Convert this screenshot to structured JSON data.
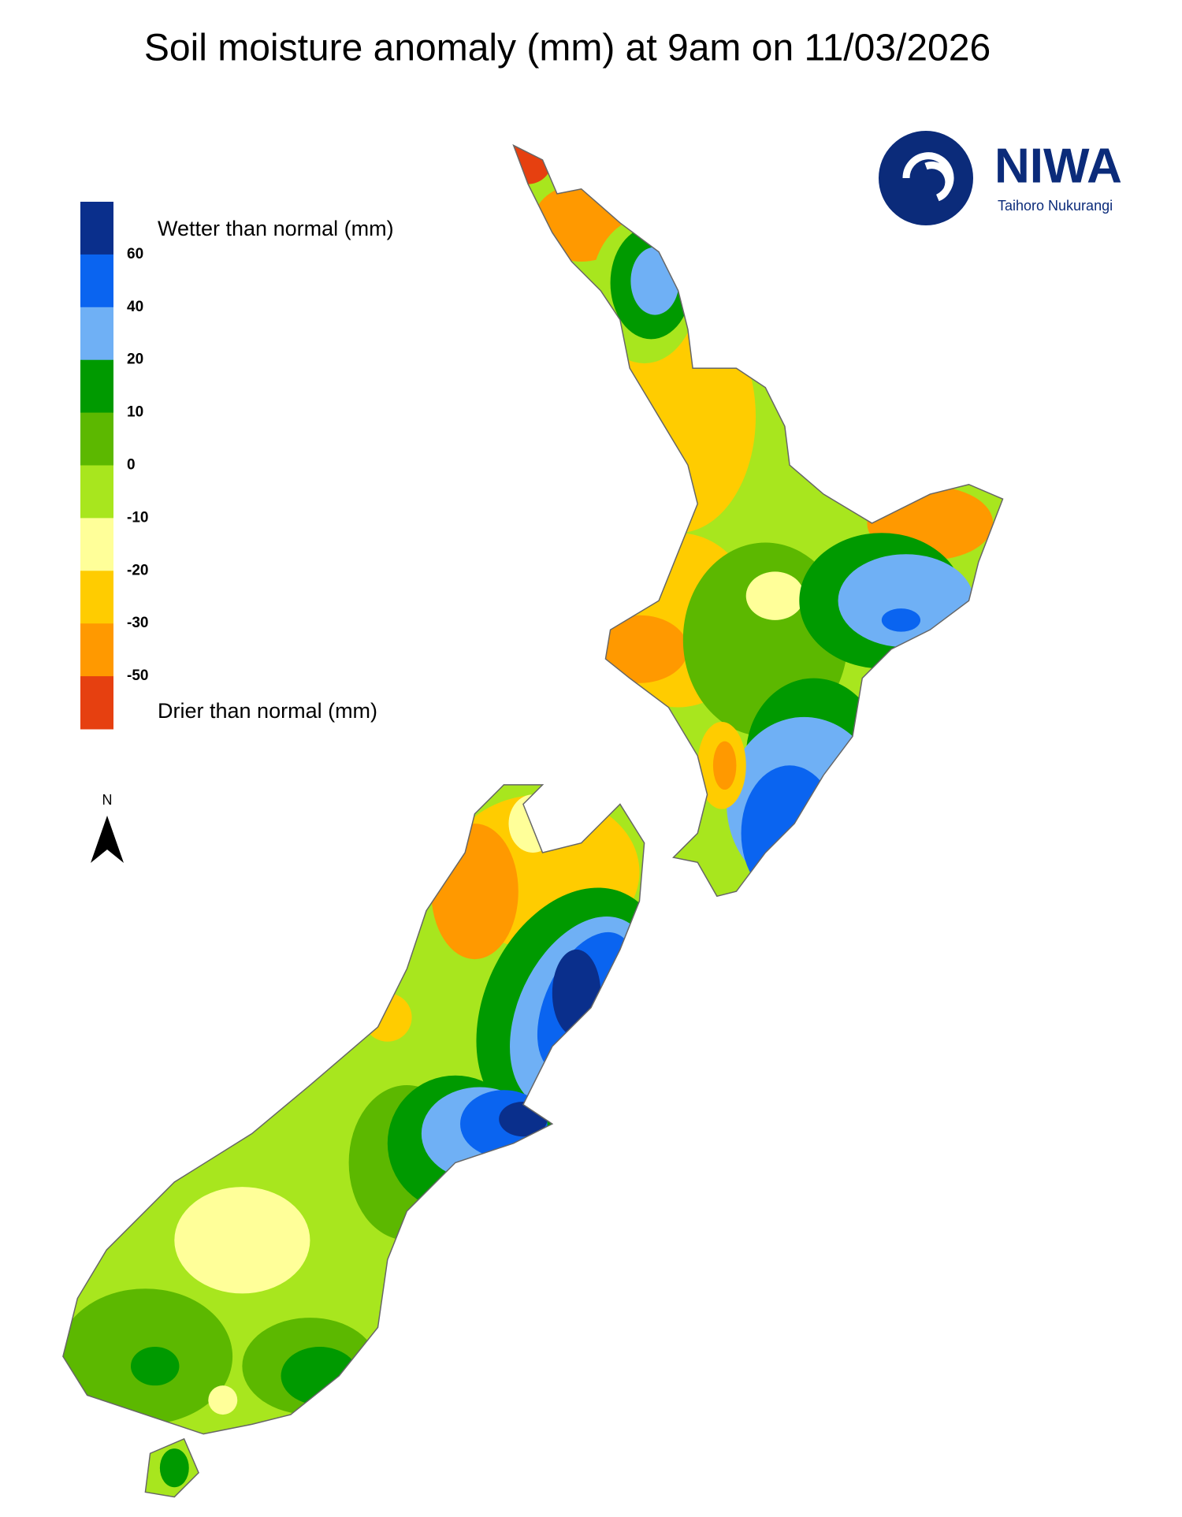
{
  "title": "Soil moisture anomaly (mm) at 9am on 11/03/2026",
  "legend": {
    "top_label": "Wetter than normal (mm)",
    "bottom_label": "Drier than normal (mm)",
    "colors": [
      "#0a2f8c",
      "#0a64f0",
      "#6fb0f5",
      "#009a00",
      "#5cb800",
      "#a8e61e",
      "#ffff99",
      "#ffcc00",
      "#ff9900",
      "#e64010"
    ],
    "ticks": [
      60,
      40,
      20,
      10,
      0,
      -10,
      -20,
      -30,
      -50
    ]
  },
  "north_label": "N",
  "logo": {
    "name": "NIWA",
    "subtitle": "Taihoro Nukurangi"
  }
}
